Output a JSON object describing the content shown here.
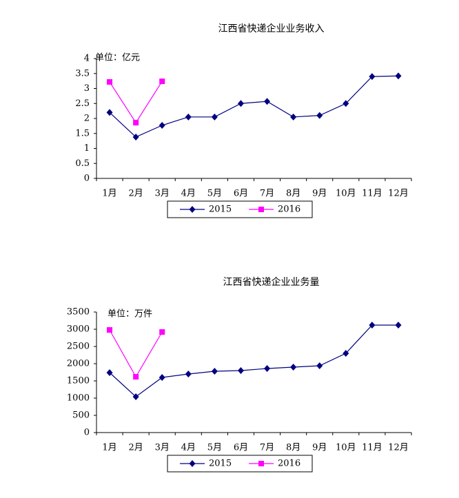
{
  "chart_data": [
    {
      "type": "line",
      "title": "江西省快递企业业务收入",
      "annotation": "单位：亿元",
      "categories": [
        "1月",
        "2月",
        "3月",
        "4月",
        "5月",
        "6月",
        "7月",
        "8月",
        "9月",
        "10月",
        "11月",
        "12月"
      ],
      "series": [
        {
          "name": "2015",
          "color": "#000080",
          "marker": "diamond",
          "values": [
            2.2,
            1.38,
            1.77,
            2.05,
            2.05,
            2.5,
            2.57,
            2.05,
            2.1,
            2.5,
            3.4,
            3.42
          ]
        },
        {
          "name": "2016",
          "color": "#ff00ff",
          "marker": "square",
          "values": [
            3.22,
            1.86,
            3.24,
            null,
            null,
            null,
            null,
            null,
            null,
            null,
            null,
            null
          ]
        }
      ],
      "ylim": [
        0,
        4
      ],
      "yticks": [
        0,
        0.5,
        1,
        1.5,
        2,
        2.5,
        3,
        3.5,
        4
      ],
      "grid": false,
      "legend": "bottom"
    },
    {
      "type": "line",
      "title": "江西省快递企业业务量",
      "annotation": "单位：万件",
      "categories": [
        "1月",
        "2月",
        "3月",
        "4月",
        "5月",
        "6月",
        "7月",
        "8月",
        "9月",
        "10月",
        "11月",
        "12月"
      ],
      "series": [
        {
          "name": "2015",
          "color": "#000080",
          "marker": "diamond",
          "values": [
            1740,
            1040,
            1600,
            1700,
            1780,
            1800,
            1860,
            1900,
            1940,
            2300,
            3120,
            3120
          ]
        },
        {
          "name": "2016",
          "color": "#ff00ff",
          "marker": "square",
          "values": [
            2980,
            1620,
            2920,
            null,
            null,
            null,
            null,
            null,
            null,
            null,
            null,
            null
          ]
        }
      ],
      "ylim": [
        0,
        3500
      ],
      "yticks": [
        0,
        500,
        1000,
        1500,
        2000,
        2500,
        3000,
        3500
      ],
      "grid": false,
      "legend": "bottom"
    }
  ]
}
